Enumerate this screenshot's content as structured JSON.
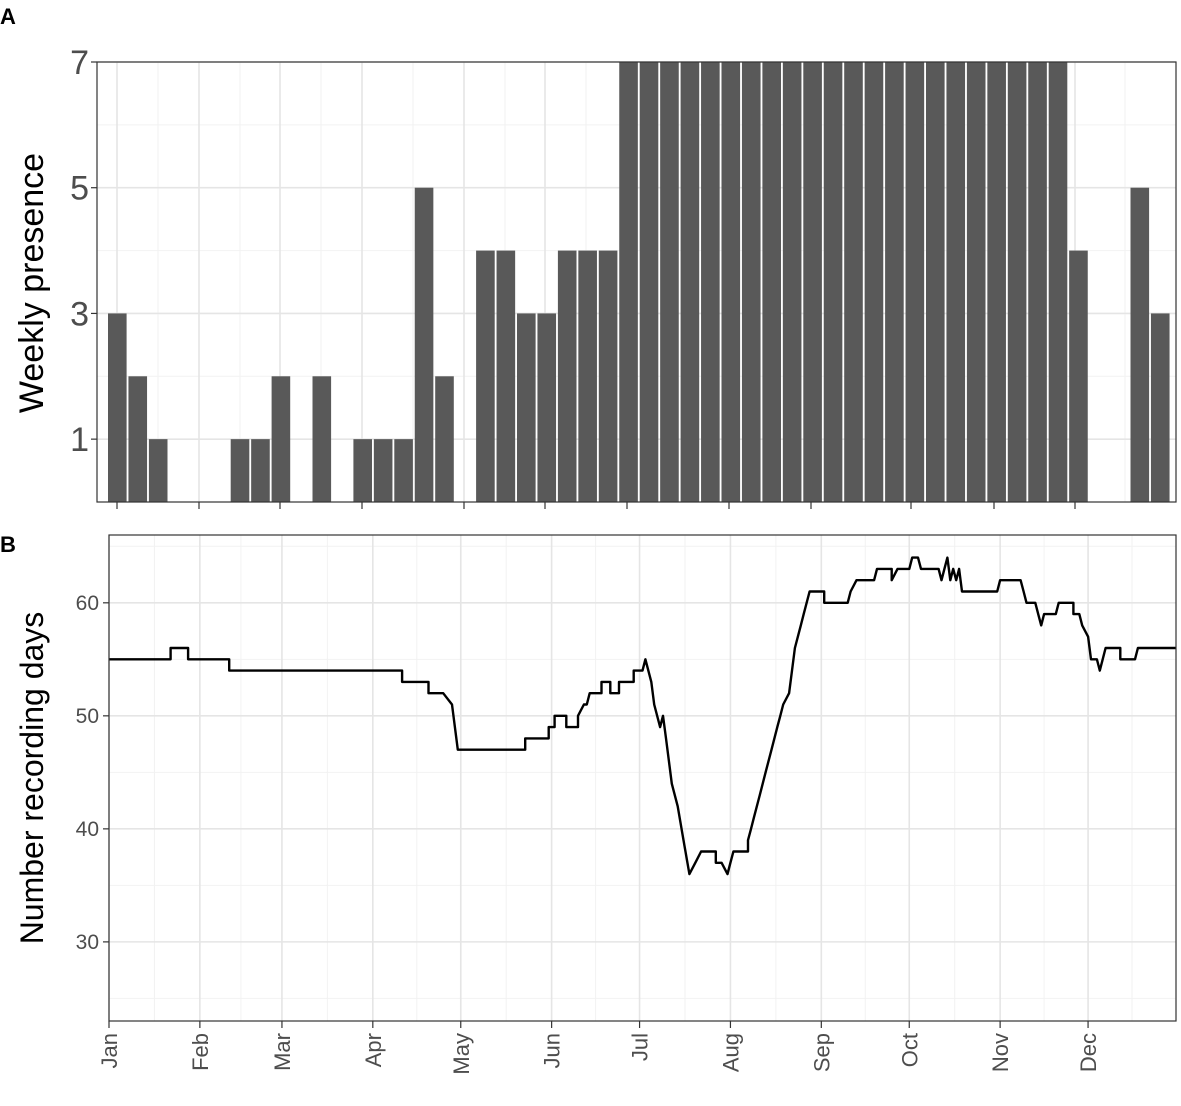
{
  "colors": {
    "bar_fill": "#595959",
    "line": "#000000",
    "grid_major": "#e5e5e5",
    "grid_minor": "#f2f2f2",
    "panel_border": "#333333",
    "tick_text": "#4d4d4d"
  },
  "chart_data": [
    {
      "panel": "A",
      "type": "bar",
      "title": "",
      "xlabel": "",
      "ylabel": "Weekly presence",
      "xlim": [
        1,
        365
      ],
      "ylim": [
        0,
        7
      ],
      "yticks": [
        1,
        3,
        5,
        7
      ],
      "grid": true,
      "legend": "none",
      "bars": [
        {
          "week": 1,
          "value": 3
        },
        {
          "week": 2,
          "value": 2
        },
        {
          "week": 3,
          "value": 1
        },
        {
          "week": 4,
          "value": 0
        },
        {
          "week": 5,
          "value": 0
        },
        {
          "week": 6,
          "value": 0
        },
        {
          "week": 7,
          "value": 1
        },
        {
          "week": 8,
          "value": 1
        },
        {
          "week": 9,
          "value": 2
        },
        {
          "week": 10,
          "value": 0
        },
        {
          "week": 11,
          "value": 2
        },
        {
          "week": 12,
          "value": 0
        },
        {
          "week": 13,
          "value": 1
        },
        {
          "week": 14,
          "value": 1
        },
        {
          "week": 15,
          "value": 1
        },
        {
          "week": 16,
          "value": 5
        },
        {
          "week": 17,
          "value": 2
        },
        {
          "week": 18,
          "value": 0
        },
        {
          "week": 19,
          "value": 4
        },
        {
          "week": 20,
          "value": 4
        },
        {
          "week": 21,
          "value": 3
        },
        {
          "week": 22,
          "value": 3
        },
        {
          "week": 23,
          "value": 4
        },
        {
          "week": 24,
          "value": 4
        },
        {
          "week": 25,
          "value": 4
        },
        {
          "week": 26,
          "value": 7
        },
        {
          "week": 27,
          "value": 7
        },
        {
          "week": 28,
          "value": 7
        },
        {
          "week": 29,
          "value": 7
        },
        {
          "week": 30,
          "value": 7
        },
        {
          "week": 31,
          "value": 7
        },
        {
          "week": 32,
          "value": 7
        },
        {
          "week": 33,
          "value": 7
        },
        {
          "week": 34,
          "value": 7
        },
        {
          "week": 35,
          "value": 7
        },
        {
          "week": 36,
          "value": 7
        },
        {
          "week": 37,
          "value": 7
        },
        {
          "week": 38,
          "value": 7
        },
        {
          "week": 39,
          "value": 7
        },
        {
          "week": 40,
          "value": 7
        },
        {
          "week": 41,
          "value": 7
        },
        {
          "week": 42,
          "value": 7
        },
        {
          "week": 43,
          "value": 7
        },
        {
          "week": 44,
          "value": 7
        },
        {
          "week": 45,
          "value": 7
        },
        {
          "week": 46,
          "value": 7
        },
        {
          "week": 47,
          "value": 7
        },
        {
          "week": 48,
          "value": 4
        },
        {
          "week": 49,
          "value": 0
        },
        {
          "week": 50,
          "value": 0
        },
        {
          "week": 51,
          "value": 5
        },
        {
          "week": 52,
          "value": 3
        }
      ]
    },
    {
      "panel": "B",
      "type": "line",
      "title": "",
      "xlabel": "",
      "ylabel": "Number recording days",
      "xlim": [
        1,
        365
      ],
      "ylim": [
        23,
        66
      ],
      "yticks": [
        30,
        40,
        50,
        60
      ],
      "x_tick_labels": [
        {
          "label": "Jan",
          "day": 1
        },
        {
          "label": "Feb",
          "day": 32
        },
        {
          "label": "Mar",
          "day": 60
        },
        {
          "label": "Apr",
          "day": 91
        },
        {
          "label": "May",
          "day": 121
        },
        {
          "label": "Jun",
          "day": 152
        },
        {
          "label": "Jul",
          "day": 182
        },
        {
          "label": "Aug",
          "day": 213
        },
        {
          "label": "Sep",
          "day": 244
        },
        {
          "label": "Oct",
          "day": 274
        },
        {
          "label": "Nov",
          "day": 305
        },
        {
          "label": "Dec",
          "day": 335
        }
      ],
      "grid": true,
      "legend": "none",
      "points": [
        [
          1,
          55
        ],
        [
          22,
          55
        ],
        [
          22,
          56
        ],
        [
          28,
          56
        ],
        [
          28,
          55
        ],
        [
          42,
          55
        ],
        [
          42,
          54
        ],
        [
          101,
          54
        ],
        [
          101,
          53
        ],
        [
          110,
          53
        ],
        [
          110,
          52
        ],
        [
          115,
          52
        ],
        [
          118,
          51
        ],
        [
          119,
          49
        ],
        [
          120,
          47
        ],
        [
          143,
          47
        ],
        [
          143,
          48
        ],
        [
          151,
          48
        ],
        [
          151,
          49
        ],
        [
          153,
          49
        ],
        [
          153,
          50
        ],
        [
          157,
          50
        ],
        [
          157,
          49
        ],
        [
          161,
          49
        ],
        [
          161,
          50
        ],
        [
          163,
          51
        ],
        [
          164,
          51
        ],
        [
          165,
          52
        ],
        [
          169,
          52
        ],
        [
          169,
          53
        ],
        [
          172,
          53
        ],
        [
          172,
          52
        ],
        [
          175,
          52
        ],
        [
          175,
          53
        ],
        [
          180,
          53
        ],
        [
          180,
          54
        ],
        [
          183,
          54
        ],
        [
          184,
          55
        ],
        [
          186,
          53
        ],
        [
          187,
          51
        ],
        [
          189,
          49
        ],
        [
          190,
          50
        ],
        [
          191,
          48
        ],
        [
          192,
          46
        ],
        [
          193,
          44
        ],
        [
          195,
          42
        ],
        [
          197,
          39
        ],
        [
          199,
          36
        ],
        [
          201,
          37
        ],
        [
          203,
          38
        ],
        [
          208,
          38
        ],
        [
          208,
          37
        ],
        [
          210,
          37
        ],
        [
          212,
          36
        ],
        [
          213,
          37
        ],
        [
          214,
          38
        ],
        [
          219,
          38
        ],
        [
          219,
          39
        ],
        [
          220,
          40
        ],
        [
          221,
          41
        ],
        [
          223,
          43
        ],
        [
          225,
          45
        ],
        [
          227,
          47
        ],
        [
          229,
          49
        ],
        [
          230,
          50
        ],
        [
          231,
          51
        ],
        [
          233,
          52
        ],
        [
          234,
          54
        ],
        [
          235,
          56
        ],
        [
          237,
          58
        ],
        [
          238,
          59
        ],
        [
          240,
          61
        ],
        [
          245,
          61
        ],
        [
          245,
          60
        ],
        [
          253,
          60
        ],
        [
          254,
          61
        ],
        [
          256,
          62
        ],
        [
          262,
          62
        ],
        [
          263,
          63
        ],
        [
          268,
          63
        ],
        [
          268,
          62
        ],
        [
          270,
          63
        ],
        [
          274,
          63
        ],
        [
          275,
          64
        ],
        [
          277,
          64
        ],
        [
          278,
          63
        ],
        [
          284,
          63
        ],
        [
          285,
          62
        ],
        [
          286,
          63
        ],
        [
          287,
          64
        ],
        [
          288,
          62
        ],
        [
          289,
          63
        ],
        [
          290,
          62
        ],
        [
          291,
          63
        ],
        [
          292,
          61
        ],
        [
          304,
          61
        ],
        [
          305,
          62
        ],
        [
          312,
          62
        ],
        [
          313,
          61
        ],
        [
          314,
          60
        ],
        [
          317,
          60
        ],
        [
          318,
          59
        ],
        [
          319,
          58
        ],
        [
          320,
          59
        ],
        [
          324,
          59
        ],
        [
          325,
          60
        ],
        [
          330,
          60
        ],
        [
          330,
          59
        ],
        [
          332,
          59
        ],
        [
          333,
          58
        ],
        [
          335,
          57
        ],
        [
          336,
          55
        ],
        [
          338,
          55
        ],
        [
          339,
          54
        ],
        [
          340,
          55
        ],
        [
          341,
          56
        ],
        [
          346,
          56
        ],
        [
          346,
          55
        ],
        [
          351,
          55
        ],
        [
          352,
          56
        ],
        [
          365,
          56
        ]
      ]
    }
  ],
  "panel_labels": {
    "a": "A",
    "b": "B"
  },
  "axis_labels": {
    "a_y": "Weekly presence",
    "b_y": "Number recording days"
  }
}
